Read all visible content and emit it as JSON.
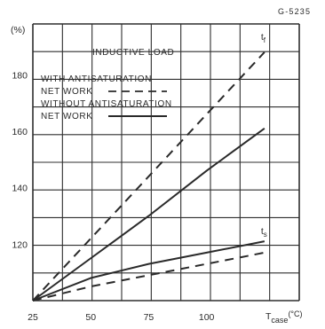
{
  "figure_code": "G-5235",
  "legend": {
    "title": "INDUCTIVE LOAD",
    "with_line1": "WITH ANTISATURATION",
    "with_line2": "NET WORK",
    "without_line1": "WITHOUT ANTISATURATION",
    "without_line2": "NET WORK"
  },
  "chart_data": {
    "type": "line",
    "ylabel": "(%)",
    "xlabel_main": "T",
    "xlabel_sub": "case",
    "xlabel_unit": "(°C)",
    "x_ticks": [
      25,
      50,
      75,
      100
    ],
    "y_ticks": [
      120,
      140,
      160,
      180
    ],
    "xlim": [
      25,
      140
    ],
    "ylim": [
      100,
      198
    ],
    "grid": true,
    "series": [
      {
        "name": "t_f",
        "label_main": "t",
        "label_sub": "f",
        "style": "dashed",
        "x": [
          25,
          50,
          75,
          100,
          125
        ],
        "y": [
          100,
          122,
          144,
          166,
          188
        ]
      },
      {
        "name": "t_f",
        "label_main": "t",
        "label_sub": "f",
        "style": "solid",
        "x": [
          25,
          50,
          75,
          100,
          125
        ],
        "y": [
          100,
          115,
          130,
          146,
          161
        ]
      },
      {
        "name": "t_s",
        "label_main": "t",
        "label_sub": "s",
        "style": "solid",
        "x": [
          25,
          50,
          75,
          100,
          125
        ],
        "y": [
          100,
          108,
          113,
          117,
          121
        ]
      },
      {
        "name": "t_s",
        "label_main": "t",
        "label_sub": "s",
        "style": "dashed",
        "x": [
          25,
          50,
          75,
          100,
          125
        ],
        "y": [
          100,
          105,
          109,
          113,
          117
        ]
      }
    ]
  }
}
